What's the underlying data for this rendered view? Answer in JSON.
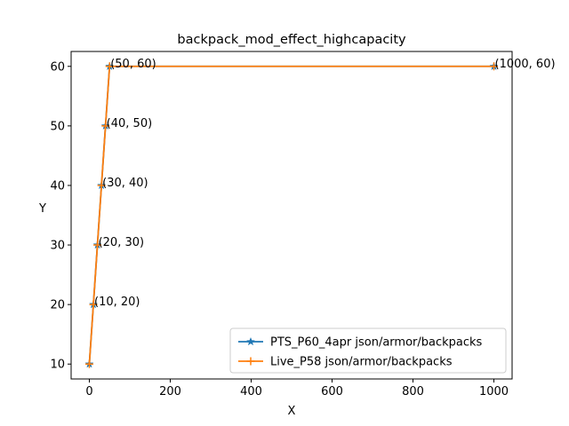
{
  "chart_data": {
    "type": "line",
    "title": "backpack_mod_effect_highcapacity",
    "xlabel": "X",
    "ylabel": "Y",
    "xlim": [
      -45,
      1045
    ],
    "ylim": [
      7.5,
      62.5
    ],
    "xticks": [
      0,
      200,
      400,
      600,
      800,
      1000
    ],
    "yticks": [
      10,
      20,
      30,
      40,
      50,
      60
    ],
    "grid": false,
    "legend_position": "lower-right",
    "series": [
      {
        "name": "PTS_P60_4apr json/armor/backpacks",
        "color": "#1f77b4",
        "marker": "star",
        "x": [
          0,
          10,
          20,
          30,
          40,
          50,
          1000
        ],
        "y": [
          10,
          20,
          30,
          40,
          50,
          60,
          60
        ]
      },
      {
        "name": "Live_P58 json/armor/backpacks",
        "color": "#ff7f0e",
        "marker": "plus",
        "x": [
          0,
          10,
          20,
          30,
          40,
          50,
          1000
        ],
        "y": [
          10,
          20,
          30,
          40,
          50,
          60,
          60
        ]
      }
    ],
    "annotations": [
      {
        "x": 10,
        "y": 20,
        "text": "(10, 20)"
      },
      {
        "x": 20,
        "y": 30,
        "text": "(20, 30)"
      },
      {
        "x": 30,
        "y": 40,
        "text": "(30, 40)"
      },
      {
        "x": 40,
        "y": 50,
        "text": "(40, 50)"
      },
      {
        "x": 50,
        "y": 60,
        "text": "(50, 60)"
      },
      {
        "x": 1000,
        "y": 60,
        "text": "(1000, 60)"
      }
    ]
  }
}
